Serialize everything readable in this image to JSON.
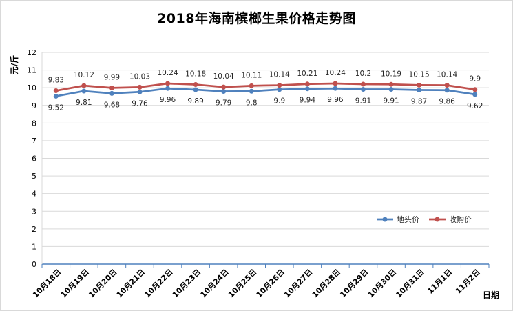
{
  "chart_data": {
    "type": "line",
    "title": "2018年海南槟榔生果价格走势图",
    "ylabel": "元/斤",
    "xlabel": "日期",
    "ylim": [
      0,
      12
    ],
    "yticks": [
      "0",
      "1",
      "2",
      "3",
      "4",
      "5",
      "6",
      "7",
      "8",
      "9",
      "10",
      "11",
      "12"
    ],
    "grid": true,
    "legend_position": "right",
    "categories": [
      "10月18日",
      "10月19日",
      "10月20日",
      "10月21日",
      "10月22日",
      "10月23日",
      "10月24日",
      "10月25日",
      "10月26日",
      "10月27日",
      "10月28日",
      "10月29日",
      "10月30日",
      "10月31日",
      "11月1日",
      "11月2日"
    ],
    "series": [
      {
        "name": "地头价",
        "color": "#4f81bd",
        "values": [
          9.52,
          9.81,
          9.68,
          9.76,
          9.96,
          9.89,
          9.79,
          9.8,
          9.9,
          9.94,
          9.96,
          9.91,
          9.91,
          9.87,
          9.86,
          9.62
        ]
      },
      {
        "name": "收购价",
        "color": "#c0504d",
        "values": [
          9.83,
          10.12,
          9.99,
          10.03,
          10.24,
          10.18,
          10.04,
          10.11,
          10.14,
          10.21,
          10.24,
          10.2,
          10.19,
          10.15,
          10.14,
          9.9
        ]
      }
    ]
  }
}
